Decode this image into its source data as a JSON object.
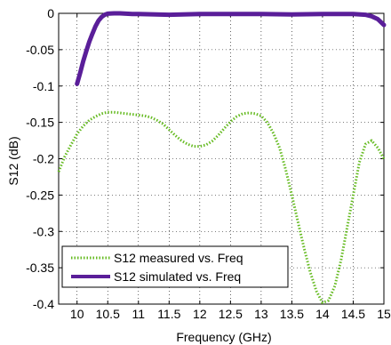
{
  "chart_data": {
    "type": "line",
    "title": "",
    "xlabel": "Frequency (GHz)",
    "ylabel": "S12 (dB)",
    "xlim": [
      9.7,
      15
    ],
    "ylim": [
      -0.4,
      0
    ],
    "xticks": [
      "10",
      "10.5",
      "11",
      "11.5",
      "12",
      "12.5",
      "13",
      "13.5",
      "14",
      "14.5",
      "15"
    ],
    "yticks": [
      "0",
      "-0.05",
      "-0.1",
      "-0.15",
      "-0.2",
      "-0.25",
      "-0.3",
      "-0.35",
      "-0.4"
    ],
    "grid": true,
    "legend_position": "bottom-left",
    "series": [
      {
        "name": "S12 measured vs. Freq",
        "color": "#66bb22",
        "style": "dotted",
        "x": [
          9.7,
          9.8,
          9.9,
          10.0,
          10.1,
          10.2,
          10.3,
          10.4,
          10.5,
          10.6,
          10.7,
          10.8,
          10.9,
          11.0,
          11.1,
          11.2,
          11.3,
          11.4,
          11.5,
          11.6,
          11.7,
          11.8,
          11.9,
          12.0,
          12.1,
          12.2,
          12.3,
          12.4,
          12.5,
          12.6,
          12.7,
          12.8,
          12.9,
          13.0,
          13.1,
          13.2,
          13.3,
          13.4,
          13.5,
          13.6,
          13.7,
          13.8,
          13.9,
          14.0,
          14.1,
          14.2,
          14.3,
          14.4,
          14.5,
          14.6,
          14.7,
          14.8,
          14.9,
          15.0
        ],
        "values": [
          -0.218,
          -0.197,
          -0.181,
          -0.166,
          -0.155,
          -0.147,
          -0.142,
          -0.138,
          -0.136,
          -0.136,
          -0.137,
          -0.138,
          -0.139,
          -0.14,
          -0.141,
          -0.143,
          -0.147,
          -0.152,
          -0.16,
          -0.168,
          -0.175,
          -0.18,
          -0.183,
          -0.183,
          -0.181,
          -0.176,
          -0.168,
          -0.158,
          -0.149,
          -0.142,
          -0.138,
          -0.137,
          -0.138,
          -0.141,
          -0.15,
          -0.165,
          -0.185,
          -0.215,
          -0.25,
          -0.287,
          -0.323,
          -0.356,
          -0.382,
          -0.398,
          -0.395,
          -0.375,
          -0.34,
          -0.295,
          -0.25,
          -0.205,
          -0.18,
          -0.175,
          -0.185,
          -0.2
        ]
      },
      {
        "name": "S12 simulated vs. Freq",
        "color": "#5a1e99",
        "style": "solid",
        "x": [
          10.0,
          10.05,
          10.1,
          10.15,
          10.2,
          10.25,
          10.3,
          10.35,
          10.4,
          10.45,
          10.5,
          10.6,
          10.7,
          10.8,
          10.9,
          11.0,
          11.5,
          12.0,
          12.5,
          13.0,
          13.5,
          14.0,
          14.5,
          14.7,
          14.8,
          14.9,
          15.0
        ],
        "values": [
          -0.097,
          -0.082,
          -0.066,
          -0.052,
          -0.039,
          -0.028,
          -0.018,
          -0.01,
          -0.005,
          -0.002,
          -0.0005,
          0.0,
          0.0,
          -0.0005,
          -0.001,
          -0.001,
          -0.002,
          -0.001,
          -0.001,
          -0.001,
          -0.0015,
          -0.001,
          -0.001,
          -0.002,
          -0.004,
          -0.008,
          -0.016
        ]
      }
    ]
  }
}
